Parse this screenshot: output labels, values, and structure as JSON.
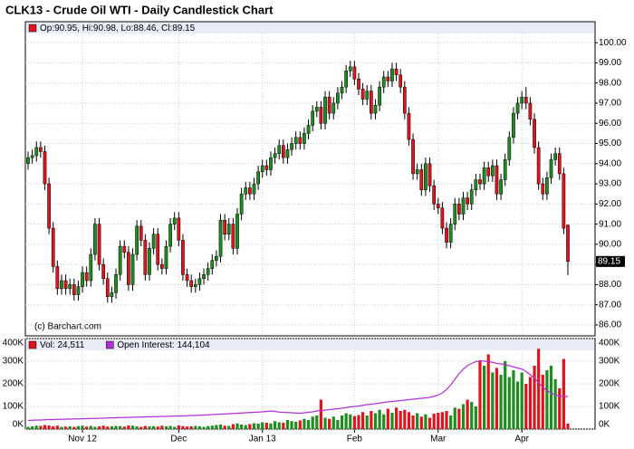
{
  "chart_data": [
    {
      "type": "candlestick",
      "title": "CLK13 - Crude Oil WTI - Daily Candlestick Chart",
      "info": "Op:90.95, Hi:90.98, Lo:88.46, Cl:89.15",
      "watermark": "(c) Barchart.com",
      "up_color": "#1e8c1e",
      "down_color": "#e0141e",
      "open": [
        94.0,
        94.3,
        94.4,
        94.8,
        94.6,
        93.0,
        90.8,
        88.9,
        87.8,
        88.2,
        87.8,
        88.0,
        87.5,
        87.9,
        88.6,
        88.2,
        89.5,
        91.0,
        89.0,
        88.3,
        87.4,
        87.6,
        88.5,
        89.9,
        89.6,
        88.0,
        89.5,
        90.9,
        90.2,
        88.5,
        89.8,
        90.5,
        89.0,
        88.8,
        89.9,
        91.0,
        91.3,
        90.2,
        88.5,
        88.2,
        87.9,
        88.0,
        88.3,
        88.5,
        88.8,
        89.2,
        89.4,
        91.2,
        90.5,
        91.0,
        89.8,
        91.5,
        92.5,
        92.8,
        92.5,
        93.0,
        93.6,
        93.9,
        93.7,
        94.3,
        94.5,
        94.9,
        94.3,
        94.7,
        95.0,
        95.3,
        95.0,
        95.5,
        95.9,
        96.6,
        96.8,
        96.0,
        97.3,
        96.5,
        97.0,
        97.5,
        97.8,
        98.6,
        98.8,
        98.2,
        97.7,
        97.2,
        97.6,
        96.5,
        96.9,
        97.8,
        98.3,
        98.1,
        98.7,
        98.4,
        97.8,
        96.5,
        95.2,
        93.5,
        93.7,
        92.7,
        94.0,
        92.9,
        92.0,
        91.8,
        90.8,
        90.1,
        91.0,
        92.0,
        91.5,
        92.3,
        92.0,
        92.7,
        93.2,
        93.0,
        93.8,
        93.4,
        93.9,
        92.5,
        93.2,
        94.2,
        95.3,
        96.5,
        97.0,
        97.3,
        97.0,
        96.2,
        94.8,
        93.0,
        92.5,
        93.3,
        94.2,
        94.5,
        93.5,
        90.95
      ],
      "high": [
        94.6,
        94.7,
        95.1,
        95.1,
        94.9,
        93.3,
        91.1,
        89.2,
        88.5,
        88.5,
        88.3,
        88.3,
        88.2,
        88.9,
        88.9,
        89.8,
        91.3,
        91.3,
        89.3,
        88.6,
        87.9,
        88.8,
        90.2,
        90.2,
        89.9,
        89.8,
        91.2,
        91.2,
        90.5,
        90.1,
        90.8,
        90.8,
        89.3,
        90.2,
        91.3,
        91.6,
        91.6,
        90.5,
        88.8,
        88.5,
        88.3,
        88.6,
        88.8,
        89.1,
        89.5,
        89.7,
        91.5,
        91.5,
        91.3,
        91.3,
        91.8,
        92.8,
        93.1,
        93.1,
        93.3,
        93.9,
        94.2,
        94.2,
        94.6,
        94.8,
        95.2,
        95.2,
        95.0,
        95.3,
        95.6,
        95.6,
        95.8,
        96.2,
        96.9,
        97.1,
        97.1,
        97.6,
        97.6,
        97.3,
        97.8,
        98.1,
        98.9,
        99.1,
        99.1,
        98.5,
        98.0,
        97.9,
        97.9,
        97.2,
        98.1,
        98.6,
        98.6,
        99.0,
        99.0,
        98.7,
        98.1,
        96.8,
        95.5,
        94.0,
        94.0,
        94.3,
        94.3,
        93.2,
        92.3,
        92.1,
        91.1,
        91.3,
        92.3,
        92.3,
        92.6,
        92.6,
        93.0,
        93.5,
        93.5,
        94.1,
        94.1,
        94.2,
        94.2,
        93.5,
        94.5,
        95.6,
        96.8,
        97.3,
        97.6,
        97.8,
        97.3,
        96.5,
        95.1,
        93.3,
        93.6,
        94.5,
        94.8,
        94.8,
        93.8,
        90.98
      ],
      "low": [
        93.7,
        94.0,
        94.1,
        94.3,
        92.7,
        90.5,
        88.6,
        87.5,
        87.5,
        87.5,
        87.5,
        87.2,
        87.2,
        87.6,
        87.9,
        87.9,
        89.2,
        88.7,
        88.0,
        87.1,
        87.1,
        87.3,
        88.2,
        89.3,
        87.7,
        87.7,
        89.2,
        89.9,
        88.2,
        88.2,
        89.5,
        88.7,
        88.5,
        88.5,
        89.6,
        90.7,
        89.9,
        88.2,
        87.9,
        87.6,
        87.6,
        87.7,
        88.0,
        88.2,
        88.5,
        88.9,
        89.1,
        90.2,
        90.2,
        89.5,
        89.5,
        91.2,
        92.2,
        92.2,
        92.2,
        92.7,
        93.3,
        93.4,
        93.4,
        94.0,
        94.2,
        94.0,
        94.0,
        94.4,
        94.7,
        94.7,
        94.7,
        95.2,
        95.6,
        96.3,
        95.7,
        95.7,
        96.2,
        96.2,
        96.7,
        97.2,
        97.5,
        98.3,
        97.9,
        97.4,
        96.9,
        96.9,
        96.2,
        96.2,
        96.6,
        97.5,
        97.8,
        97.8,
        98.1,
        97.5,
        96.2,
        94.9,
        93.2,
        93.2,
        92.4,
        92.4,
        92.6,
        91.7,
        91.5,
        90.5,
        89.8,
        89.8,
        90.7,
        91.2,
        91.2,
        91.7,
        91.7,
        92.4,
        92.7,
        92.7,
        93.1,
        93.1,
        92.2,
        92.2,
        92.9,
        93.9,
        95.0,
        96.2,
        96.7,
        96.7,
        95.9,
        94.5,
        92.7,
        92.2,
        92.2,
        93.0,
        93.9,
        93.2,
        90.5,
        88.46
      ],
      "close": [
        94.3,
        94.4,
        94.8,
        94.6,
        93.0,
        90.8,
        88.9,
        87.8,
        88.2,
        87.8,
        88.0,
        87.5,
        87.9,
        88.6,
        88.2,
        89.5,
        91.0,
        89.0,
        88.3,
        87.4,
        87.6,
        88.5,
        89.9,
        89.6,
        88.0,
        89.5,
        90.9,
        90.2,
        88.5,
        89.8,
        90.5,
        89.0,
        88.8,
        89.9,
        91.0,
        91.3,
        90.2,
        88.5,
        88.2,
        87.9,
        88.0,
        88.3,
        88.5,
        88.8,
        89.2,
        89.4,
        91.2,
        90.5,
        91.0,
        89.8,
        91.5,
        92.5,
        92.8,
        92.5,
        93.0,
        93.6,
        93.9,
        93.7,
        94.3,
        94.5,
        94.9,
        94.3,
        94.7,
        95.0,
        95.3,
        95.0,
        95.5,
        95.9,
        96.6,
        96.8,
        96.0,
        97.3,
        96.5,
        97.0,
        97.5,
        97.8,
        98.6,
        98.8,
        98.2,
        97.7,
        97.2,
        97.6,
        96.5,
        96.9,
        97.8,
        98.3,
        98.1,
        98.7,
        98.4,
        97.8,
        96.5,
        95.2,
        93.5,
        93.7,
        92.7,
        94.0,
        92.9,
        92.0,
        91.8,
        90.8,
        90.1,
        91.0,
        92.0,
        91.5,
        92.3,
        92.0,
        92.7,
        93.2,
        93.0,
        93.8,
        93.4,
        93.9,
        92.5,
        93.2,
        94.2,
        95.3,
        96.5,
        97.0,
        97.3,
        97.0,
        96.2,
        94.8,
        93.0,
        92.5,
        93.3,
        94.2,
        94.5,
        93.5,
        90.8,
        89.15
      ],
      "ylim": [
        85.46,
        101.04
      ],
      "yticks": [
        {
          "value": 86,
          "label": "86.00"
        },
        {
          "value": 87,
          "label": "87.00"
        },
        {
          "value": 88,
          "label": "88.00"
        },
        {
          "value": 89,
          "label": "89.00"
        },
        {
          "value": 90,
          "label": "90.00"
        },
        {
          "value": 91,
          "label": "91.00"
        },
        {
          "value": 92,
          "label": "92.00"
        },
        {
          "value": 93,
          "label": "93.00"
        },
        {
          "value": 94,
          "label": "94.00"
        },
        {
          "value": 95,
          "label": "95.00"
        },
        {
          "value": 96,
          "label": "96.00"
        },
        {
          "value": 97,
          "label": "97.00"
        },
        {
          "value": 98,
          "label": "98.00"
        },
        {
          "value": 99,
          "label": "99.00"
        },
        {
          "value": 100,
          "label": "100.00"
        }
      ],
      "xticks": [
        {
          "value": 13,
          "label": "Nov 12"
        },
        {
          "value": 36,
          "label": "Dec"
        },
        {
          "value": 56,
          "label": "Jan 13"
        },
        {
          "value": 78,
          "label": "Feb"
        },
        {
          "value": 98,
          "label": "Mar"
        },
        {
          "value": 118,
          "label": "Apr"
        }
      ],
      "grid": true
    },
    {
      "type": "bar",
      "series": [
        {
          "name": "Vol: 24,511",
          "color": "#e0141e",
          "values": [
            10000,
            12000,
            15000,
            14000,
            18000,
            16000,
            12000,
            15000,
            10000,
            11000,
            12000,
            10000,
            13000,
            15000,
            11000,
            14000,
            10000,
            12000,
            15000,
            11000,
            12000,
            14000,
            13000,
            11000,
            16000,
            15000,
            12000,
            10000,
            14000,
            12000,
            13000,
            11000,
            15000,
            12000,
            14000,
            10000,
            16000,
            13000,
            11000,
            12000,
            14000,
            12000,
            10000,
            13000,
            15000,
            18000,
            20000,
            15000,
            14000,
            22000,
            25000,
            20000,
            18000,
            22000,
            26000,
            24000,
            30000,
            28000,
            25000,
            35000,
            30000,
            28000,
            40000,
            35000,
            32000,
            38000,
            45000,
            40000,
            55000,
            60000,
            130000,
            50000,
            45000,
            55000,
            40000,
            60000,
            70000,
            65000,
            58000,
            62000,
            75000,
            60000,
            80000,
            70000,
            85000,
            65000,
            90000,
            72000,
            95000,
            80000,
            85000,
            75000,
            60000,
            70000,
            55000,
            65000,
            50000,
            68000,
            72000,
            75000,
            80000,
            60000,
            95000,
            90000,
            110000,
            130000,
            120000,
            100000,
            300000,
            280000,
            330000,
            250000,
            270000,
            240000,
            300000,
            230000,
            260000,
            210000,
            250000,
            200000,
            230000,
            280000,
            355000,
            240000,
            260000,
            280000,
            220000,
            180000,
            310000,
            24511
          ]
        },
        {
          "name": "Open Interest: 144,104",
          "color": "#b030d8",
          "line": true,
          "values": [
            38000,
            39000,
            40000,
            40000,
            41000,
            42000,
            42000,
            43000,
            43000,
            44000,
            44000,
            45000,
            45000,
            46000,
            46000,
            47000,
            47000,
            48000,
            48000,
            49000,
            50000,
            50000,
            51000,
            51000,
            52000,
            52000,
            53000,
            53000,
            54000,
            54000,
            55000,
            55000,
            56000,
            56000,
            57000,
            57000,
            58000,
            58000,
            59000,
            60000,
            60000,
            61000,
            62000,
            63000,
            64000,
            65000,
            66000,
            67000,
            68000,
            69000,
            70000,
            71000,
            72000,
            73000,
            74000,
            75000,
            76000,
            78000,
            80000,
            78000,
            75000,
            74000,
            73000,
            72000,
            71000,
            70000,
            72000,
            74000,
            76000,
            80000,
            82000,
            84000,
            86000,
            88000,
            90000,
            92000,
            95000,
            98000,
            100000,
            102000,
            105000,
            108000,
            110000,
            112000,
            115000,
            118000,
            120000,
            122000,
            124000,
            126000,
            128000,
            130000,
            132000,
            134000,
            136000,
            138000,
            140000,
            145000,
            150000,
            160000,
            175000,
            195000,
            220000,
            245000,
            265000,
            280000,
            290000,
            298000,
            302000,
            300000,
            298000,
            295000,
            290000,
            288000,
            285000,
            280000,
            275000,
            270000,
            265000,
            255000,
            240000,
            225000,
            205000,
            185000,
            170000,
            160000,
            150000,
            146000,
            145000,
            144104
          ]
        }
      ],
      "ylim": [
        0,
        400000
      ],
      "yticks": [
        {
          "value": 0,
          "label": "0K"
        },
        {
          "value": 100000,
          "label": "100K"
        },
        {
          "value": 200000,
          "label": "200K"
        },
        {
          "value": 300000,
          "label": "300K"
        },
        {
          "value": 400000,
          "label": "400K"
        }
      ],
      "grid": true
    }
  ]
}
